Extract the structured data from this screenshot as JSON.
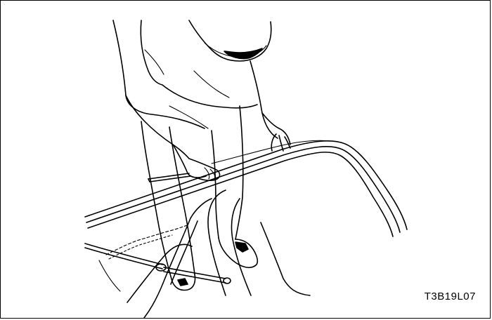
{
  "figure": {
    "code": "T3B19L07",
    "line_color": "#000000",
    "background_color": "#ffffff"
  }
}
